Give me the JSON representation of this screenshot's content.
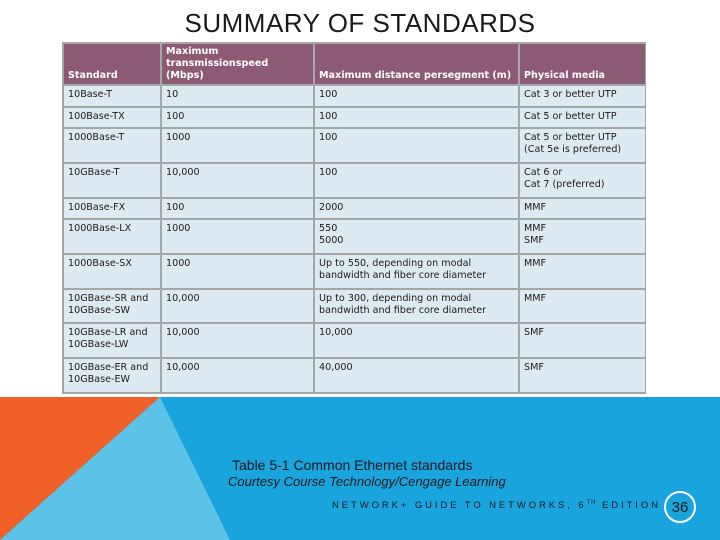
{
  "title": "SUMMARY OF STANDARDS",
  "table": {
    "headers": [
      [
        "",
        "Standard"
      ],
      [
        "Maximum transmission",
        "speed (Mbps)"
      ],
      [
        "Maximum distance per",
        "segment (m)"
      ],
      [
        "",
        "Physical media"
      ]
    ],
    "rows": [
      [
        [
          "10Base-T"
        ],
        [
          "10"
        ],
        [
          "100"
        ],
        [
          "Cat 3 or better UTP"
        ]
      ],
      [
        [
          "100Base-TX"
        ],
        [
          "100"
        ],
        [
          "100"
        ],
        [
          "Cat 5 or better UTP"
        ]
      ],
      [
        [
          "1000Base-T"
        ],
        [
          "1000"
        ],
        [
          "100"
        ],
        [
          "Cat 5 or better UTP",
          "(Cat 5e is preferred)"
        ]
      ],
      [
        [
          "10GBase-T"
        ],
        [
          "10,000"
        ],
        [
          "100"
        ],
        [
          "Cat 6 or",
          "Cat 7 (preferred)"
        ]
      ],
      [
        [
          "100Base-FX"
        ],
        [
          "100"
        ],
        [
          "2000"
        ],
        [
          "MMF"
        ]
      ],
      [
        [
          "1000Base-LX"
        ],
        [
          "1000"
        ],
        [
          "550",
          "5000"
        ],
        [
          "MMF",
          "SMF"
        ]
      ],
      [
        [
          "1000Base-SX"
        ],
        [
          "1000"
        ],
        [
          "Up to 550, depending on modal",
          "bandwidth and fiber core diameter"
        ],
        [
          "MMF"
        ]
      ],
      [
        [
          "10GBase-SR and",
          "10GBase-SW"
        ],
        [
          "10,000"
        ],
        [
          "Up to 300, depending on modal",
          "bandwidth and fiber core diameter"
        ],
        [
          "MMF"
        ]
      ],
      [
        [
          "10GBase-LR and",
          "10GBase-LW"
        ],
        [
          "10,000"
        ],
        [
          "10,000"
        ],
        [
          "SMF"
        ]
      ],
      [
        [
          "10GBase-ER and",
          "10GBase-EW"
        ],
        [
          "10,000"
        ],
        [
          "40,000"
        ],
        [
          "SMF"
        ]
      ]
    ]
  },
  "caption": "Table 5-1 Common Ethernet standards",
  "courtesy": "Courtesy Course Technology/Cengage Learning",
  "footer": {
    "prefix": "NETWORK+ GUIDE TO NETWORKS, 6",
    "sup": "TH",
    "suffix": " EDITION"
  },
  "page_number": "36",
  "colors": {
    "header_bg": "#8d5a74",
    "cell_bg": "#ddeaf1",
    "orange": "#f0612a",
    "blue": "#1aa4dd",
    "light_blue": "#5cc2e8"
  }
}
